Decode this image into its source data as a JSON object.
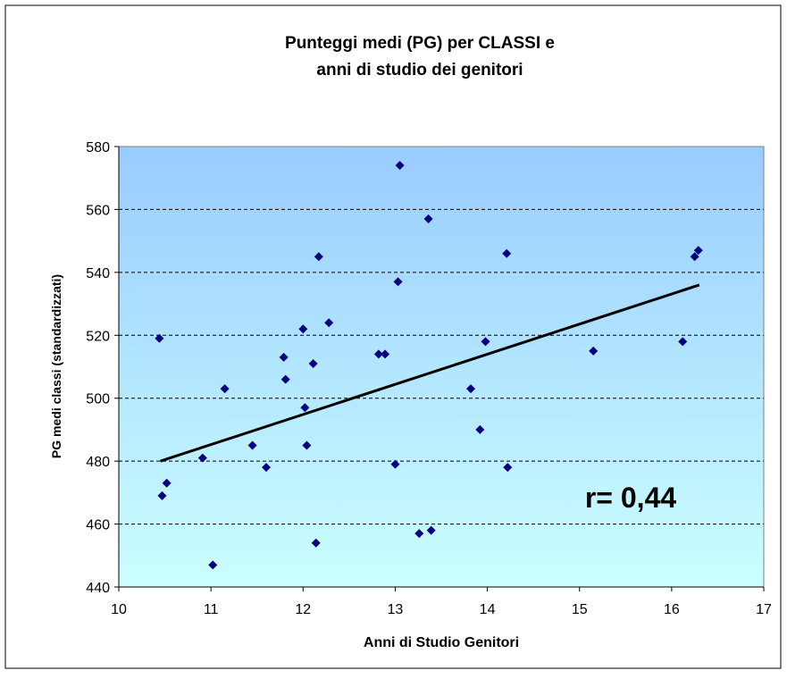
{
  "chart_data": {
    "type": "scatter",
    "title": [
      "Punteggi medi (PG) per CLASSI e",
      "anni di studio dei genitori"
    ],
    "x_label": "Anni di Studio Genitori",
    "y_label": "PG medi classi (standardizzati)",
    "annotation": "r= 0,44",
    "xlim": [
      10,
      17
    ],
    "xticks": [
      10,
      11,
      12,
      13,
      14,
      15,
      16,
      17
    ],
    "ylim": [
      440,
      580
    ],
    "yticks": [
      440,
      460,
      480,
      500,
      520,
      540,
      560,
      580
    ],
    "grid": true,
    "series": [
      {
        "color": "#000080",
        "x": [
          10.44,
          10.47,
          10.52,
          10.91,
          11.02,
          11.15,
          11.45,
          11.6,
          11.79,
          11.81,
          12.0,
          12.02,
          12.04,
          12.11,
          12.14,
          12.17,
          12.28,
          12.82,
          12.89,
          13.0,
          13.03,
          13.05,
          13.26,
          13.36,
          13.39,
          13.82,
          13.92,
          13.98,
          14.21,
          14.22,
          15.15,
          16.12,
          16.25,
          16.29
        ],
        "values": [
          519,
          469,
          473,
          481,
          447,
          503,
          485,
          478,
          513,
          506,
          522,
          497,
          485,
          511,
          454,
          545,
          524,
          514,
          514,
          479,
          537,
          574,
          457,
          557,
          458,
          503,
          490,
          518,
          546,
          478,
          515,
          518,
          545,
          547
        ]
      }
    ],
    "trendline": {
      "color": "#000000",
      "x": [
        10.45,
        16.3
      ],
      "values": [
        480,
        536
      ]
    }
  }
}
